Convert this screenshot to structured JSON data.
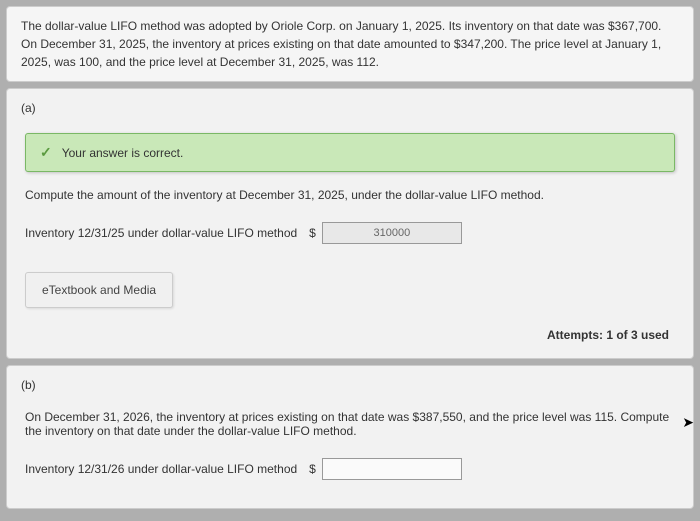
{
  "problem": {
    "text": "The dollar-value LIFO method was adopted by Oriole Corp. on January 1, 2025. Its inventory on that date was $367,700. On December 31, 2025, the inventory at prices existing on that date amounted to $347,200. The price level at January 1, 2025, was 100, and the price level at December 31, 2025, was 112."
  },
  "part_a": {
    "label": "(a)",
    "success_message": "Your answer is correct.",
    "instruction": "Compute the amount of the inventory at December 31, 2025, under the dollar-value LIFO method.",
    "answer_label": "Inventory 12/31/25 under dollar-value LIFO method",
    "currency": "$",
    "answer_value": "310000",
    "etextbook_label": "eTextbook and Media",
    "attempts": "Attempts: 1 of 3 used"
  },
  "part_b": {
    "label": "(b)",
    "instruction": "On December 31, 2026, the inventory at prices existing on that date was $387,550, and the price level was 115. Compute the inventory on that date under the dollar-value LIFO method.",
    "answer_label": "Inventory 12/31/26 under dollar-value LIFO method",
    "currency": "$"
  }
}
